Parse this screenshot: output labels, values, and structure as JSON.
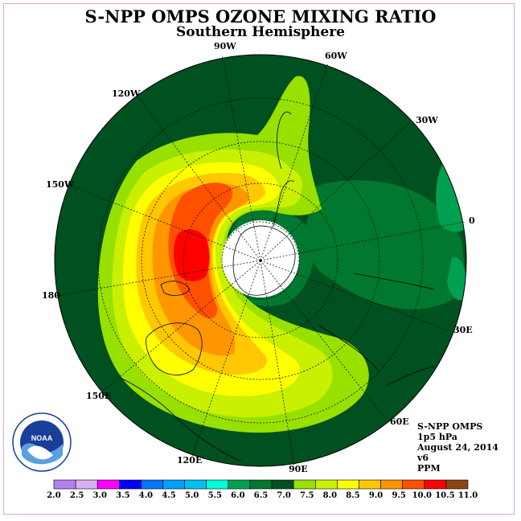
{
  "title": "S-NPP OMPS OZONE MIXING RATIO",
  "subtitle": "Southern Hemisphere",
  "logo": {
    "text": "NOAA",
    "ring_text": "NATIONAL OCEANIC AND ATMOSPHERIC ADMINISTRATION · U.S. DEPARTMENT OF COMMERCE"
  },
  "longitude_labels": [
    "90W",
    "60W",
    "120W",
    "30W",
    "150W",
    "0",
    "180",
    "30E",
    "150E",
    "60E",
    "120E",
    "90E"
  ],
  "info": {
    "instrument": "S-NPP OMPS",
    "level": "1p5 hPa",
    "date": "August 24, 2014",
    "version": "v6",
    "units": "PPM"
  },
  "colorbar": {
    "ticks": [
      "2.0",
      "2.5",
      "3.0",
      "3.5",
      "4.0",
      "4.5",
      "5.0",
      "5.5",
      "6.0",
      "6.5",
      "7.0",
      "7.5",
      "8.0",
      "8.5",
      "9.0",
      "9.5",
      "10.0",
      "10.5",
      "11.0"
    ],
    "colors": [
      "#b480f0",
      "#d8b0f0",
      "#ff00ff",
      "#0000ff",
      "#0078ff",
      "#00a0ff",
      "#00c0f0",
      "#00ffd8",
      "#00a050",
      "#007830",
      "#005020",
      "#98e000",
      "#c8f000",
      "#ffff00",
      "#ffc800",
      "#ff9600",
      "#ff5000",
      "#ff0000",
      "#8b4513"
    ]
  },
  "map": {
    "projection": "south polar stereographic",
    "background_color": "#005020",
    "polar_night_color": "#ffffff",
    "contour_levels_ppm": [
      6.5,
      7.0,
      7.5,
      8.0,
      8.5,
      9.0,
      9.5,
      10.0,
      10.5
    ]
  }
}
